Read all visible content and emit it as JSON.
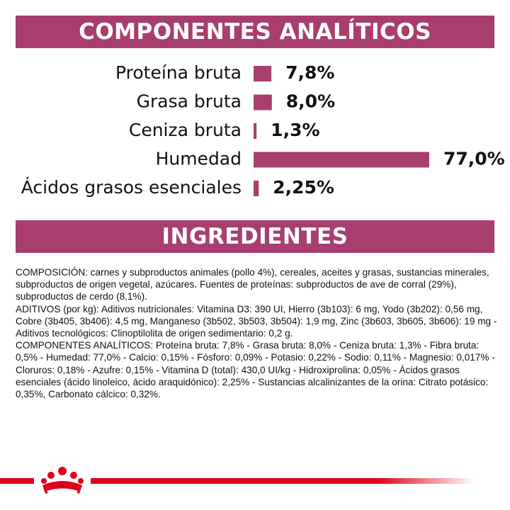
{
  "colors": {
    "accent": "#a83e6f",
    "brand_red": "#e1001a"
  },
  "sections": {
    "analytic_title": "COMPONENTES ANALÍTICOS",
    "ingredients_title": "INGREDIENTES"
  },
  "chart_data": {
    "type": "bar",
    "orientation": "horizontal",
    "categories": [
      "Proteína bruta",
      "Grasa bruta",
      "Ceniza bruta",
      "Humedad",
      "Ácidos grasos esenciales"
    ],
    "values": [
      7.8,
      8.0,
      1.3,
      77.0,
      2.25
    ],
    "value_labels": [
      "7,8%",
      "8,0%",
      "1,3%",
      "77,0%",
      "2,25%"
    ],
    "unit": "%",
    "xlim": [
      0,
      100
    ],
    "grid": false,
    "legend": "none"
  },
  "ingredients_text": [
    "COMPOSICIÓN: carnes y subproductos animales (pollo 4%), cereales, aceites y grasas, sustancias minerales, subproductos de origen vegetal, azúcares. Fuentes de proteínas: subproductos de ave de corral (29%), subproductos de cerdo (8,1%).",
    "ADITIVOS (por kg): Aditivos nutricionales: Vitamina D3: 390 UI, Hierro (3b103): 6 mg, Yodo (3b202): 0,56 mg, Cobre (3b405, 3b406): 4,5 mg, Manganeso (3b502, 3b503, 3b504): 1,9 mg, Zinc (3b603, 3b605, 3b606): 19 mg - Aditivos tecnológicos: Clinoptilolita de origen sedimentario: 0,2 g.",
    "COMPONENTES ANALÍTICOS: Proteína bruta: 7,8% - Grasa bruta: 8,0% - Ceniza bruta: 1,3% - Fibra bruta: 0,5% - Humedad: 77,0% - Calcio: 0,15% - Fósforo: 0,09% - Potasio: 0,22% - Sodio: 0,11% - Magnesio: 0,017% - Cloruros: 0,18% - Azufre: 0,15% - Vitamina D (total): 430,0 UI/kg - Hidroxiprolina: 0,05% - Ácidos grasos esenciales (ácido linoleico, ácido araquidónico): 2,25% - Sustancias alcalinizantes de la orina: Citrato potásico: 0,35%, Carbonato cálcico: 0,32%."
  ],
  "footer": {
    "logo_icon": "royal-crown-logo-icon"
  }
}
